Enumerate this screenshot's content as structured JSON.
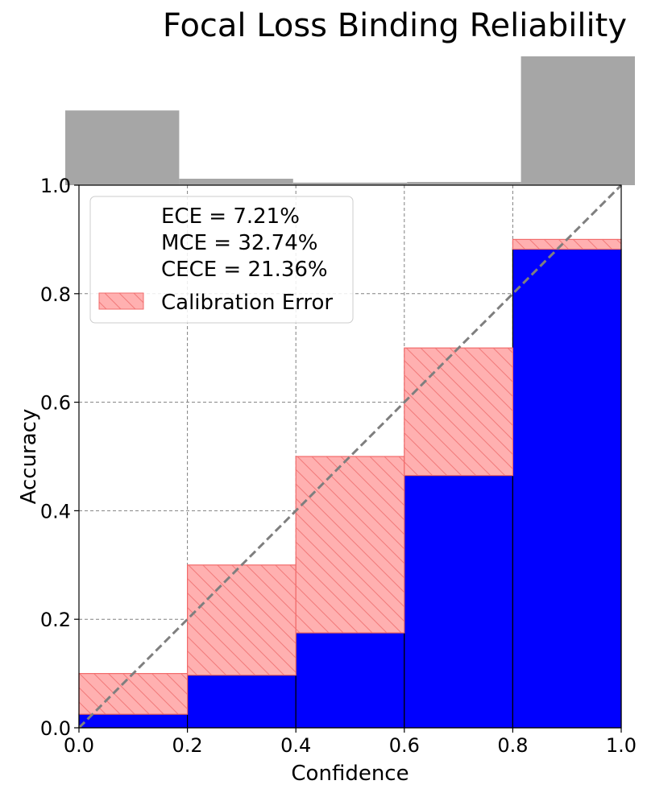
{
  "chart_data": {
    "type": "bar",
    "title": "Focal Loss Binding Reliability",
    "xlabel": "Confidence",
    "ylabel": "Accuracy",
    "xlim": [
      0.0,
      1.0
    ],
    "ylim": [
      0.0,
      1.0
    ],
    "xticks": [
      "0.0",
      "0.2",
      "0.4",
      "0.6",
      "0.8",
      "1.0"
    ],
    "yticks": [
      "0.0",
      "0.2",
      "0.4",
      "0.6",
      "0.8",
      "1.0"
    ],
    "bins": [
      0.0,
      0.2,
      0.4,
      0.6,
      0.8,
      1.0
    ],
    "accuracy": [
      0.025,
      0.097,
      0.175,
      0.465,
      0.882
    ],
    "expected_confidence": [
      0.1,
      0.3,
      0.5,
      0.7,
      0.9
    ],
    "histogram_counts_relative": [
      0.58,
      0.05,
      0.02,
      0.025,
      1.0
    ],
    "grid": true,
    "diagonal_reference": true,
    "legend_position": "top-left",
    "legend": {
      "stats": [
        "ECE = 7.21%",
        "MCE = 32.74%",
        "CECE = 21.36%"
      ],
      "entry_label": "Calibration Error"
    },
    "colors": {
      "accuracy_bar": "#0000ff",
      "error_fill": "#ffb0b0",
      "error_edge": "#f26b6b",
      "histogram": "#a6a6a6",
      "diagonal": "#7f7f7f",
      "grid": "#808080"
    }
  }
}
